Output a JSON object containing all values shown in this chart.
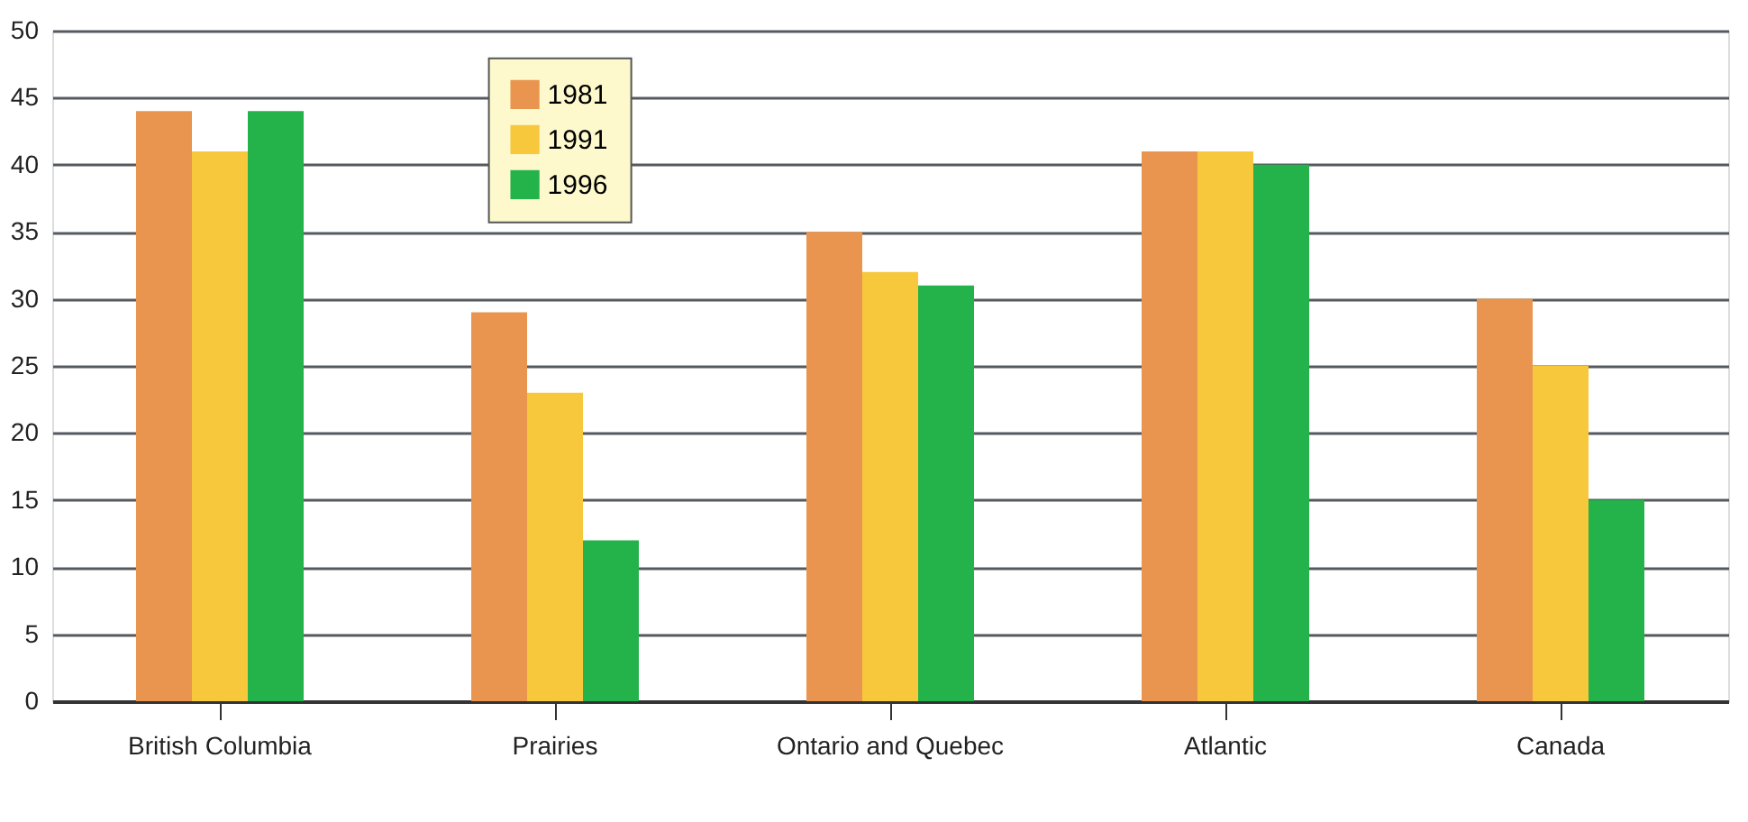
{
  "chart_data": {
    "type": "bar",
    "categories": [
      "British Columbia",
      "Prairies",
      "Ontario and Quebec",
      "Atlantic",
      "Canada"
    ],
    "series": [
      {
        "name": "1981",
        "color": "#e9954f",
        "values": [
          44,
          29,
          35,
          41,
          30
        ]
      },
      {
        "name": "1991",
        "color": "#f7c83b",
        "values": [
          41,
          23,
          32,
          41,
          25
        ]
      },
      {
        "name": "1996",
        "color": "#24b24a",
        "values": [
          44,
          12,
          31,
          40,
          15
        ]
      }
    ],
    "ylim": [
      0,
      50
    ],
    "yticks": [
      0,
      5,
      10,
      15,
      20,
      25,
      30,
      35,
      40,
      45,
      50
    ],
    "grid": "y",
    "legend": "top left"
  }
}
